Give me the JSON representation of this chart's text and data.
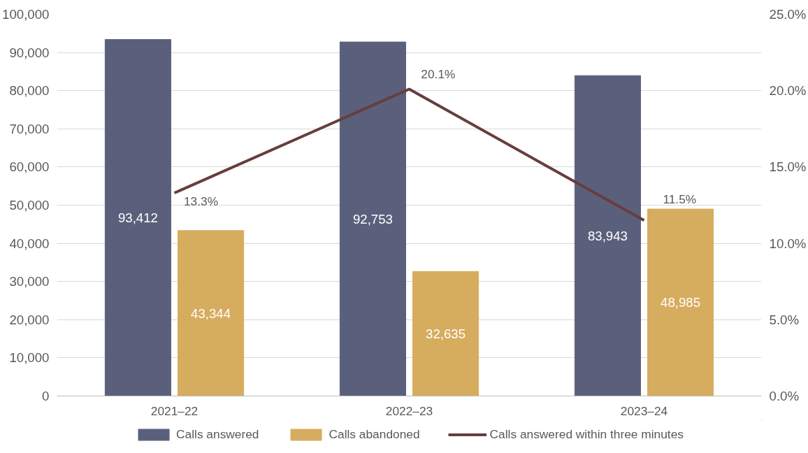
{
  "chart_data": {
    "type": "bar",
    "categories": [
      "2021–22",
      "2022–23",
      "2023–24"
    ],
    "series": [
      {
        "name": "Calls answered",
        "color": "#5a607c",
        "values": [
          93412,
          92753,
          83943
        ],
        "value_labels": [
          "93,412",
          "92,753",
          "83,943"
        ]
      },
      {
        "name": "Calls abandoned",
        "color": "#d6ac5e",
        "values": [
          43344,
          32635,
          48985
        ],
        "value_labels": [
          "43,344",
          "32,635",
          "48,985"
        ]
      },
      {
        "name": "Calls answered within three minutes",
        "type": "line",
        "axis": "y2",
        "color": "#673d3d",
        "values": [
          13.3,
          20.1,
          11.5
        ],
        "value_labels": [
          "13.3%",
          "20.1%",
          "11.5%"
        ]
      }
    ],
    "ylim": [
      0,
      100000
    ],
    "yticks": [
      {
        "value": 0,
        "label": "0"
      },
      {
        "value": 10000,
        "label": "10,000"
      },
      {
        "value": 20000,
        "label": "20,000"
      },
      {
        "value": 30000,
        "label": "30,000"
      },
      {
        "value": 40000,
        "label": "40,000"
      },
      {
        "value": 50000,
        "label": "50,000"
      },
      {
        "value": 60000,
        "label": "60,000"
      },
      {
        "value": 70000,
        "label": "70,000"
      },
      {
        "value": 80000,
        "label": "80,000"
      },
      {
        "value": 90000,
        "label": "90,000"
      },
      {
        "value": 100000,
        "label": "100,000"
      }
    ],
    "y2lim": [
      0,
      25
    ],
    "y2ticks": [
      {
        "value": 0,
        "label": "0.0%"
      },
      {
        "value": 5,
        "label": "5.0%"
      },
      {
        "value": 10,
        "label": "10.0%"
      },
      {
        "value": 15,
        "label": "15.0%"
      },
      {
        "value": 20,
        "label": "20.0%"
      },
      {
        "value": 25,
        "label": "25.0%"
      }
    ],
    "grid": "y",
    "legend": "bottom"
  }
}
